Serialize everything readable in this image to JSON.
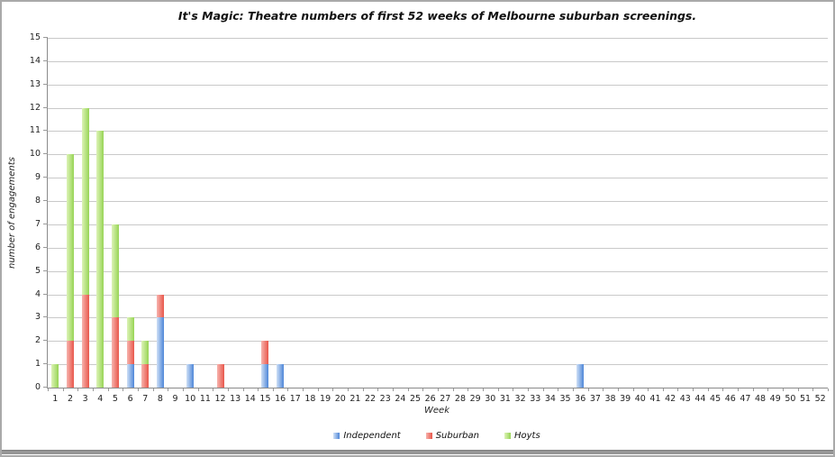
{
  "chart_data": {
    "type": "bar",
    "stacked": true,
    "title": "It's Magic: Theatre numbers of first 52 weeks of Melbourne suburban screenings.",
    "xlabel": "Week",
    "ylabel": "number of engagements",
    "ylim": [
      0,
      15
    ],
    "ytick_step": 1,
    "grid": true,
    "legend_position": "bottom",
    "categories": [
      "1",
      "2",
      "3",
      "4",
      "5",
      "6",
      "7",
      "8",
      "9",
      "10",
      "11",
      "12",
      "13",
      "14",
      "15",
      "16",
      "17",
      "18",
      "19",
      "20",
      "21",
      "22",
      "23",
      "24",
      "25",
      "26",
      "27",
      "28",
      "29",
      "30",
      "31",
      "32",
      "33",
      "34",
      "35",
      "36",
      "37",
      "38",
      "39",
      "40",
      "41",
      "42",
      "43",
      "44",
      "45",
      "46",
      "47",
      "48",
      "49",
      "50",
      "51",
      "52"
    ],
    "series": [
      {
        "name": "Independent",
        "color": "#4e86d8",
        "color_light": "#cfe0f6",
        "values": [
          0,
          0,
          0,
          0,
          0,
          1,
          0,
          3,
          0,
          1,
          0,
          0,
          0,
          0,
          1,
          1,
          0,
          0,
          0,
          0,
          0,
          0,
          0,
          0,
          0,
          0,
          0,
          0,
          0,
          0,
          0,
          0,
          0,
          0,
          0,
          1,
          0,
          0,
          0,
          0,
          0,
          0,
          0,
          0,
          0,
          0,
          0,
          0,
          0,
          0,
          0,
          0
        ]
      },
      {
        "name": "Suburban",
        "color": "#e8574b",
        "color_light": "#f7b4ae",
        "values": [
          0,
          2,
          4,
          0,
          3,
          1,
          1,
          1,
          0,
          0,
          0,
          1,
          0,
          0,
          1,
          0,
          0,
          0,
          0,
          0,
          0,
          0,
          0,
          0,
          0,
          0,
          0,
          0,
          0,
          0,
          0,
          0,
          0,
          0,
          0,
          0,
          0,
          0,
          0,
          0,
          0,
          0,
          0,
          0,
          0,
          0,
          0,
          0,
          0,
          0,
          0,
          0
        ]
      },
      {
        "name": "Hoyts",
        "color": "#97d455",
        "color_light": "#ddf3b7",
        "values": [
          1,
          8,
          8,
          11,
          4,
          1,
          1,
          0,
          0,
          0,
          0,
          0,
          0,
          0,
          0,
          0,
          0,
          0,
          0,
          0,
          0,
          0,
          0,
          0,
          0,
          0,
          0,
          0,
          0,
          0,
          0,
          0,
          0,
          0,
          0,
          0,
          0,
          0,
          0,
          0,
          0,
          0,
          0,
          0,
          0,
          0,
          0,
          0,
          0,
          0,
          0,
          0
        ]
      }
    ],
    "axis_color": "#8a8a8a",
    "grid_color": "#c9c9c9"
  }
}
